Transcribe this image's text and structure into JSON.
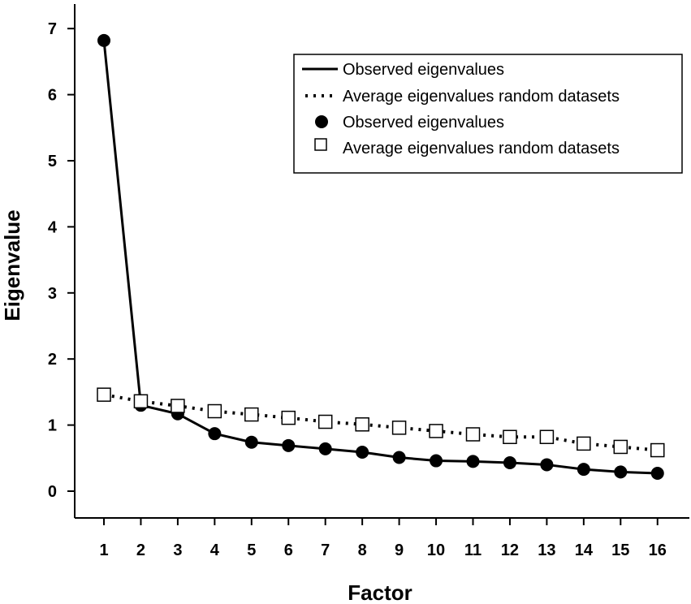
{
  "chart_data": {
    "type": "line",
    "xlabel": "Factor",
    "ylabel": "Eigenvalue",
    "x": [
      1,
      2,
      3,
      4,
      5,
      6,
      7,
      8,
      9,
      10,
      11,
      12,
      13,
      14,
      15,
      16
    ],
    "xticks": [
      "1",
      "2",
      "3",
      "4",
      "5",
      "6",
      "7",
      "8",
      "9",
      "10",
      "11",
      "12",
      "13",
      "14",
      "15",
      "16"
    ],
    "yticks": [
      "0",
      "1",
      "2",
      "3",
      "4",
      "5",
      "6",
      "7"
    ],
    "ylim": [
      -0.4,
      7.4
    ],
    "grid": false,
    "legend_position": "top-right",
    "series": [
      {
        "name": "Observed eigenvalues",
        "line": "solid",
        "marker": "filled-circle",
        "values": [
          6.82,
          1.3,
          1.17,
          0.87,
          0.74,
          0.69,
          0.64,
          0.59,
          0.51,
          0.46,
          0.45,
          0.43,
          0.4,
          0.33,
          0.29,
          0.27
        ]
      },
      {
        "name": "Average eigenvalues random datasets",
        "line": "dotted",
        "marker": "open-square",
        "values": [
          1.46,
          1.36,
          1.29,
          1.21,
          1.16,
          1.11,
          1.05,
          1.01,
          0.96,
          0.91,
          0.86,
          0.82,
          0.82,
          0.72,
          0.67,
          0.62
        ]
      }
    ],
    "legend": [
      {
        "symbol": "solid-line",
        "label": "Observed eigenvalues"
      },
      {
        "symbol": "dotted-line",
        "label": "Average eigenvalues random datasets"
      },
      {
        "symbol": "filled-circle",
        "label": "Observed eigenvalues"
      },
      {
        "symbol": "open-square",
        "label": "Average eigenvalues random datasets"
      }
    ]
  }
}
